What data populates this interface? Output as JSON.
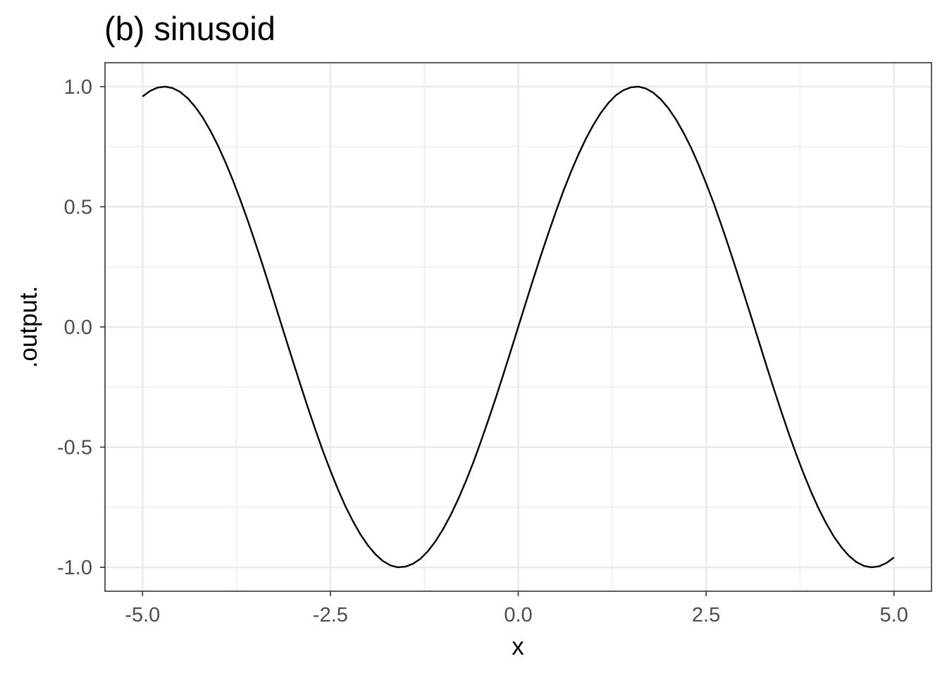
{
  "chart_data": {
    "type": "line",
    "title": "(b) sinusoid",
    "xlabel": "x",
    "ylabel": ".output.",
    "xlim": [
      -5.0,
      5.0
    ],
    "ylim": [
      -1.0,
      1.0
    ],
    "x_ticks": [
      "-5.0",
      "-2.5",
      "0.0",
      "2.5",
      "5.0"
    ],
    "y_ticks": [
      "-1.0",
      "-0.5",
      "0.0",
      "0.5",
      "1.0"
    ],
    "grid": true,
    "series": [
      {
        "color": "#000000",
        "x": [
          -5.0,
          -4.9,
          -4.8,
          -4.7,
          -4.6,
          -4.5,
          -4.4,
          -4.3,
          -4.2,
          -4.1,
          -4.0,
          -3.9,
          -3.8,
          -3.7,
          -3.6,
          -3.5,
          -3.4,
          -3.3,
          -3.2,
          -3.1,
          -3.0,
          -2.9,
          -2.8,
          -2.7,
          -2.6,
          -2.5,
          -2.4,
          -2.3,
          -2.2,
          -2.1,
          -2.0,
          -1.9,
          -1.8,
          -1.7,
          -1.6,
          -1.5,
          -1.4,
          -1.3,
          -1.2,
          -1.1,
          -1.0,
          -0.9,
          -0.8,
          -0.7,
          -0.6,
          -0.5,
          -0.4,
          -0.3,
          -0.2,
          -0.1,
          0.0,
          0.1,
          0.2,
          0.3,
          0.4,
          0.5,
          0.6,
          0.7,
          0.8,
          0.9,
          1.0,
          1.1,
          1.2,
          1.3,
          1.4,
          1.5,
          1.6,
          1.7,
          1.8,
          1.9,
          2.0,
          2.1,
          2.2,
          2.3,
          2.4,
          2.5,
          2.6,
          2.7,
          2.8,
          2.9,
          3.0,
          3.1,
          3.2,
          3.3,
          3.4,
          3.5,
          3.6,
          3.7,
          3.8,
          3.9,
          4.0,
          4.1,
          4.2,
          4.3,
          4.4,
          4.5,
          4.6,
          4.7,
          4.8,
          4.9,
          5.0
        ],
        "y": [
          0.959,
          0.982,
          0.996,
          1.0,
          0.994,
          0.978,
          0.952,
          0.916,
          0.872,
          0.818,
          0.757,
          0.688,
          0.612,
          0.53,
          0.443,
          0.351,
          0.256,
          0.158,
          0.058,
          -0.042,
          -0.141,
          -0.239,
          -0.335,
          -0.427,
          -0.516,
          -0.598,
          -0.675,
          -0.746,
          -0.808,
          -0.863,
          -0.909,
          -0.946,
          -0.974,
          -0.992,
          -1.0,
          -0.997,
          -0.985,
          -0.964,
          -0.932,
          -0.891,
          -0.841,
          -0.783,
          -0.717,
          -0.644,
          -0.565,
          -0.479,
          -0.389,
          -0.296,
          -0.199,
          -0.1,
          0.0,
          0.1,
          0.199,
          0.296,
          0.389,
          0.479,
          0.565,
          0.644,
          0.717,
          0.783,
          0.841,
          0.891,
          0.932,
          0.964,
          0.985,
          0.997,
          1.0,
          0.992,
          0.974,
          0.946,
          0.909,
          0.863,
          0.808,
          0.746,
          0.675,
          0.598,
          0.516,
          0.427,
          0.335,
          0.239,
          0.141,
          0.042,
          -0.058,
          -0.158,
          -0.256,
          -0.351,
          -0.443,
          -0.53,
          -0.612,
          -0.688,
          -0.757,
          -0.818,
          -0.872,
          -0.916,
          -0.952,
          -0.978,
          -0.994,
          -1.0,
          -0.996,
          -0.982,
          -0.959
        ]
      }
    ]
  }
}
